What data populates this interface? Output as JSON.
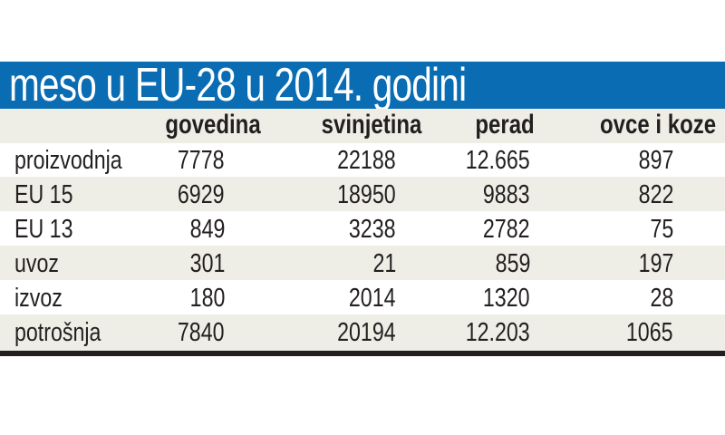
{
  "colors": {
    "accent": "#0a6db4",
    "band": "#efeee6"
  },
  "title": "meso u EU-28 u 2014. godini",
  "columns": [
    "govedina",
    "svinjetina",
    "perad",
    "ovce i koze"
  ],
  "rows": [
    {
      "label": "proizvodnja",
      "values": [
        "7778",
        "22188",
        "12.665",
        "897"
      ]
    },
    {
      "label": "EU 15",
      "values": [
        "6929",
        "18950",
        "9883",
        "822"
      ]
    },
    {
      "label": "EU 13",
      "values": [
        "849",
        "3238",
        "2782",
        "75"
      ]
    },
    {
      "label": "uvoz",
      "values": [
        "301",
        "21",
        "859",
        "197"
      ]
    },
    {
      "label": "izvoz",
      "values": [
        "180",
        "2014",
        "1320",
        "28"
      ]
    },
    {
      "label": "potrošnja",
      "values": [
        "7840",
        "20194",
        "12.203",
        "1065"
      ]
    }
  ]
}
